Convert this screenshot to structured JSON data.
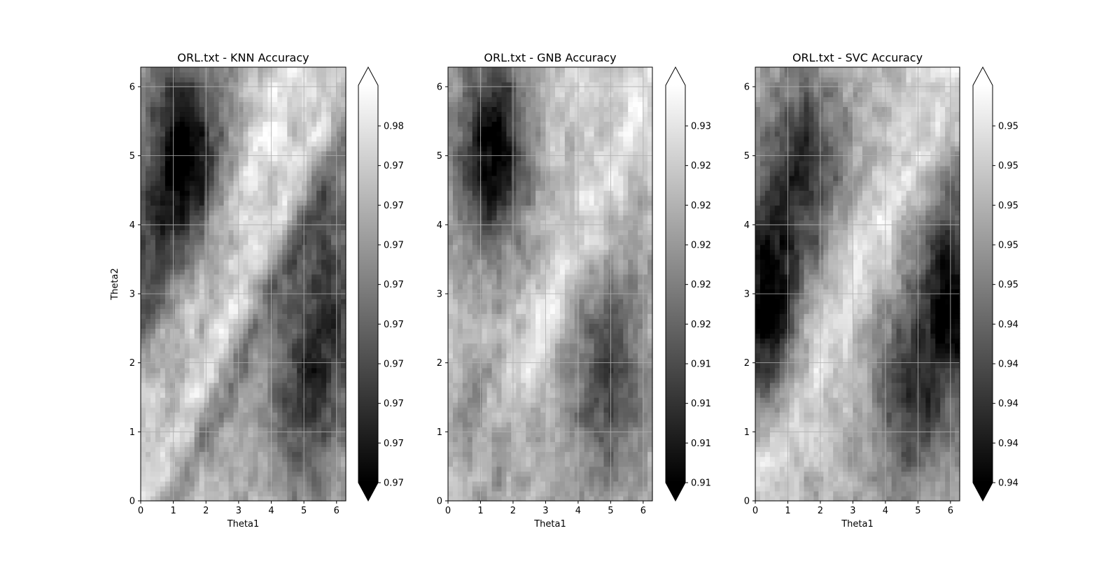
{
  "chart_data": [
    {
      "type": "heatmap",
      "title": "ORL.txt - KNN Accuracy",
      "xlabel": "Theta1",
      "ylabel": "Theta2",
      "xlim": [
        0,
        6.2832
      ],
      "ylim": [
        0,
        6.2832
      ],
      "x_ticks": [
        "0",
        "1",
        "2",
        "3",
        "4",
        "5",
        "6"
      ],
      "y_ticks": [
        "0",
        "1",
        "2",
        "3",
        "4",
        "5",
        "6"
      ],
      "grid": true,
      "colormap": "gray",
      "colorbar": {
        "ticks": [
          "0.98",
          "0.97",
          "0.97",
          "0.97",
          "0.97",
          "0.97",
          "0.97",
          "0.97",
          "0.97",
          "0.97"
        ],
        "extend": "both"
      },
      "features": {
        "dark_regions": [
          {
            "theta1": 1.35,
            "theta2": 4.95,
            "strength": 1.0
          },
          {
            "theta1": 5.0,
            "theta2": 1.5,
            "strength": 0.6
          },
          {
            "theta1": 6.0,
            "theta2": 3.2,
            "strength": 0.55
          },
          {
            "theta1": 0.1,
            "theta2": 3.0,
            "strength": 0.45
          }
        ],
        "bright_band": "diagonal theta2 = theta1 + 1.5",
        "dark_band": "diagonal theta2 = theta1 - 0.9"
      }
    },
    {
      "type": "heatmap",
      "title": "ORL.txt - GNB Accuracy",
      "xlabel": "Theta1",
      "ylabel": "",
      "xlim": [
        0,
        6.2832
      ],
      "ylim": [
        0,
        6.2832
      ],
      "x_ticks": [
        "0",
        "1",
        "2",
        "3",
        "4",
        "5",
        "6"
      ],
      "y_ticks": [
        "0",
        "1",
        "2",
        "3",
        "4",
        "5",
        "6"
      ],
      "grid": true,
      "colormap": "gray",
      "colorbar": {
        "ticks": [
          "0.93",
          "0.92",
          "0.92",
          "0.92",
          "0.92",
          "0.92",
          "0.91",
          "0.91",
          "0.91",
          "0.91"
        ],
        "extend": "both"
      },
      "features": {
        "dark_regions": [
          {
            "theta1": 1.4,
            "theta2": 5.0,
            "strength": 0.95
          },
          {
            "theta1": 4.9,
            "theta2": 1.8,
            "strength": 0.6
          },
          {
            "theta1": 0.9,
            "theta2": 0.7,
            "strength": 0.35
          }
        ],
        "bright_band": "diagonal theta2 = theta1 + 0.5",
        "dark_band": "none"
      }
    },
    {
      "type": "heatmap",
      "title": "ORL.txt - SVC Accuracy",
      "xlabel": "Theta1",
      "ylabel": "",
      "xlim": [
        0,
        6.2832
      ],
      "ylim": [
        0,
        6.2832
      ],
      "x_ticks": [
        "0",
        "1",
        "2",
        "3",
        "4",
        "5",
        "6"
      ],
      "y_ticks": [
        "0",
        "1",
        "2",
        "3",
        "4",
        "5",
        "6"
      ],
      "grid": true,
      "colormap": "gray",
      "colorbar": {
        "ticks": [
          "0.95",
          "0.95",
          "0.95",
          "0.95",
          "0.95",
          "0.94",
          "0.94",
          "0.94",
          "0.94",
          "0.94"
        ],
        "extend": "both"
      },
      "features": {
        "dark_regions": [
          {
            "theta1": 0.35,
            "theta2": 2.9,
            "strength": 0.95
          },
          {
            "theta1": 6.0,
            "theta2": 3.0,
            "strength": 0.9
          },
          {
            "theta1": 1.5,
            "theta2": 4.9,
            "strength": 0.65
          },
          {
            "theta1": 4.7,
            "theta2": 1.5,
            "strength": 0.6
          }
        ],
        "bright_band": "diagonal theta2 = theta1 + 0.7",
        "dark_band": "none"
      }
    }
  ]
}
